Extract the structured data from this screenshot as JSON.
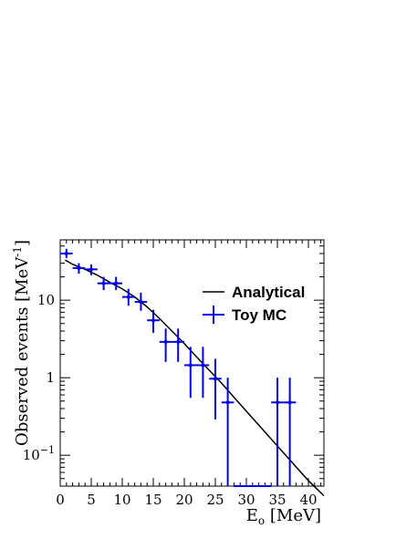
{
  "chart_data": {
    "type": "scatter",
    "title": "",
    "xlabel": {
      "base": "E",
      "sub": "o",
      "rest": " [MeV]"
    },
    "ylabel": {
      "base": "Observed events [MeV",
      "sup": "-1",
      "rest": "]"
    },
    "xlim": [
      0,
      42.5
    ],
    "ylim": [
      0.04,
      60
    ],
    "yscale": "log",
    "x_ticks": [
      0,
      5,
      10,
      15,
      20,
      25,
      30,
      35,
      40
    ],
    "y_ticks": [
      {
        "value": 10,
        "label": "10"
      },
      {
        "value": 1,
        "label": "1"
      },
      {
        "value": 0.1,
        "base": "10",
        "sup": "−1"
      }
    ],
    "legend_position": "middle-right",
    "series": [
      {
        "name": "Analytical",
        "kind": "line",
        "color": "#000000",
        "x": [
          0.8,
          2,
          4,
          6,
          8,
          10,
          12,
          14,
          16,
          18,
          20,
          22,
          24,
          26,
          28,
          30,
          32,
          34,
          36,
          38,
          40,
          42.5
        ],
        "y": [
          33,
          29,
          25,
          21,
          17,
          14,
          11,
          8.2,
          5.8,
          4.0,
          2.75,
          1.85,
          1.25,
          0.85,
          0.56,
          0.37,
          0.245,
          0.162,
          0.107,
          0.071,
          0.047,
          0.03
        ]
      },
      {
        "name": "Toy MC",
        "kind": "errorbar",
        "color": "#0000ee",
        "points": [
          {
            "x": 1,
            "xerr": 1,
            "y": 40,
            "ylo": 35,
            "yhi": 46
          },
          {
            "x": 3,
            "xerr": 1,
            "y": 26,
            "ylo": 22,
            "yhi": 30
          },
          {
            "x": 5,
            "xerr": 1,
            "y": 25,
            "ylo": 21,
            "yhi": 29
          },
          {
            "x": 7,
            "xerr": 1,
            "y": 16.5,
            "ylo": 13.5,
            "yhi": 20
          },
          {
            "x": 9,
            "xerr": 1,
            "y": 16.5,
            "ylo": 13.5,
            "yhi": 20
          },
          {
            "x": 11,
            "xerr": 1,
            "y": 11,
            "ylo": 8.5,
            "yhi": 14
          },
          {
            "x": 13,
            "xerr": 1,
            "y": 9.5,
            "ylo": 7.3,
            "yhi": 12.5
          },
          {
            "x": 15,
            "xerr": 1,
            "y": 5.5,
            "ylo": 3.8,
            "yhi": 7.5
          },
          {
            "x": 17,
            "xerr": 1,
            "y": 2.9,
            "ylo": 1.6,
            "yhi": 4.3
          },
          {
            "x": 19,
            "xerr": 1,
            "y": 2.9,
            "ylo": 1.6,
            "yhi": 4.3
          },
          {
            "x": 21,
            "xerr": 1,
            "y": 1.45,
            "ylo": 0.55,
            "yhi": 2.5
          },
          {
            "x": 23,
            "xerr": 1,
            "y": 1.45,
            "ylo": 0.55,
            "yhi": 2.5
          },
          {
            "x": 25,
            "xerr": 1,
            "y": 0.97,
            "ylo": 0.29,
            "yhi": 1.75
          },
          {
            "x": 27,
            "xerr": 1,
            "y": 0.48,
            "ylo": 0.04,
            "yhi": 1.0
          },
          {
            "x": 29,
            "xerr": 1,
            "y": 0.04,
            "ylo": 0.04,
            "yhi": 0.04
          },
          {
            "x": 31,
            "xerr": 1,
            "y": 0.04,
            "ylo": 0.04,
            "yhi": 0.04
          },
          {
            "x": 33,
            "xerr": 1,
            "y": 0.04,
            "ylo": 0.04,
            "yhi": 0.04
          },
          {
            "x": 35,
            "xerr": 1,
            "y": 0.48,
            "ylo": 0.04,
            "yhi": 1.0
          },
          {
            "x": 37,
            "xerr": 1,
            "y": 0.48,
            "ylo": 0.04,
            "yhi": 1.0
          }
        ]
      }
    ]
  }
}
